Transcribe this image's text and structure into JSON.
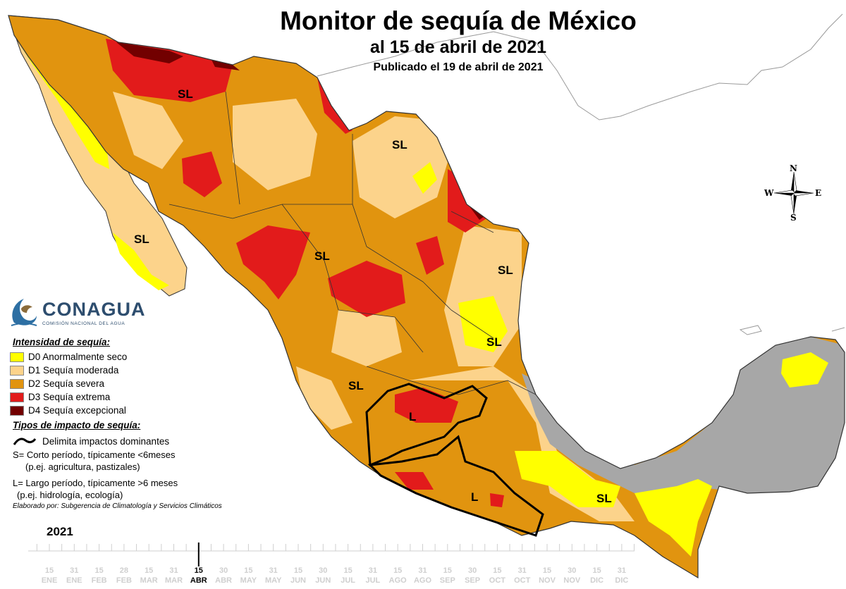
{
  "header": {
    "title": "Monitor de sequía de México",
    "date_line": "al 15 de abril de 2021",
    "published": "Publicado el 19 de abril de 2021"
  },
  "logo": {
    "name": "CONAGUA",
    "subtitle": "COMISIÓN NACIONAL DEL AGUA"
  },
  "legend": {
    "intensity_heading": "Intensidad de sequía:",
    "items": [
      {
        "code": "D0",
        "label": "D0 Anormalmente seco",
        "color": "#ffff00"
      },
      {
        "code": "D1",
        "label": "D1 Sequía moderada",
        "color": "#fcd38b"
      },
      {
        "code": "D2",
        "label": "D2 Sequía severa",
        "color": "#e1940f"
      },
      {
        "code": "D3",
        "label": "D3 Sequía extrema",
        "color": "#e21b1b"
      },
      {
        "code": "D4",
        "label": "D4 Sequía excepcional",
        "color": "#720000"
      }
    ],
    "impact_heading": "Tipos de impacto de sequía:",
    "boundary_label": "Delimita impactos dominantes",
    "short_term": "S= Corto período, típicamente <6meses",
    "short_examples": "(p.ej. agricultura, pastizales)",
    "long_term": "L= Largo período, típicamente >6 meses",
    "long_examples": "(p.ej. hidrología, ecología)",
    "credit": "Elaborado por: Subgerencia de Climatología y Servicios Climáticos"
  },
  "map_labels": [
    {
      "text": "SL"
    },
    {
      "text": "SL"
    },
    {
      "text": "SL"
    },
    {
      "text": "SL"
    },
    {
      "text": "SL"
    },
    {
      "text": "SL"
    },
    {
      "text": "SL"
    },
    {
      "text": "SL"
    },
    {
      "text": "L"
    },
    {
      "text": "L"
    }
  ],
  "compass": {
    "n": "N",
    "s": "S",
    "e": "E",
    "w": "W"
  },
  "timeline": {
    "year": "2021",
    "active_index": 6,
    "ticks": [
      {
        "day": "15",
        "month": "ENE"
      },
      {
        "day": "31",
        "month": "ENE"
      },
      {
        "day": "15",
        "month": "FEB"
      },
      {
        "day": "28",
        "month": "FEB"
      },
      {
        "day": "15",
        "month": "MAR"
      },
      {
        "day": "31",
        "month": "MAR"
      },
      {
        "day": "15",
        "month": "ABR"
      },
      {
        "day": "30",
        "month": "ABR"
      },
      {
        "day": "15",
        "month": "MAY"
      },
      {
        "day": "31",
        "month": "MAY"
      },
      {
        "day": "15",
        "month": "JUN"
      },
      {
        "day": "30",
        "month": "JUN"
      },
      {
        "day": "15",
        "month": "JUL"
      },
      {
        "day": "31",
        "month": "JUL"
      },
      {
        "day": "15",
        "month": "AGO"
      },
      {
        "day": "31",
        "month": "AGO"
      },
      {
        "day": "15",
        "month": "SEP"
      },
      {
        "day": "30",
        "month": "SEP"
      },
      {
        "day": "15",
        "month": "OCT"
      },
      {
        "day": "31",
        "month": "OCT"
      },
      {
        "day": "15",
        "month": "NOV"
      },
      {
        "day": "30",
        "month": "NOV"
      },
      {
        "day": "15",
        "month": "DIC"
      },
      {
        "day": "31",
        "month": "DIC"
      }
    ]
  }
}
